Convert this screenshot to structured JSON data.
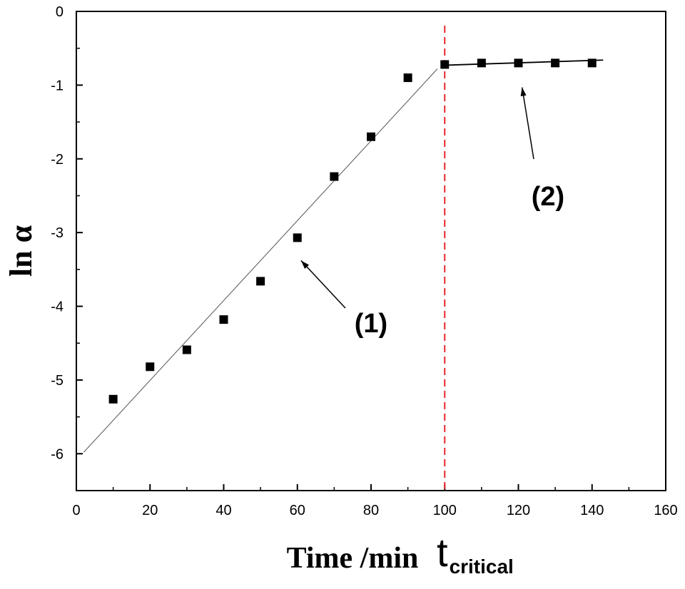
{
  "chart_data": {
    "type": "scatter",
    "xlabel": "Time /min",
    "ylabel": "ln α",
    "xlim": [
      0,
      160
    ],
    "ylim": [
      -6.5,
      0
    ],
    "x_ticks": [
      "0",
      "20",
      "40",
      "60",
      "80",
      "100",
      "120",
      "140",
      "160"
    ],
    "y_ticks": [
      "0",
      "-1",
      "-2",
      "-3",
      "-4",
      "-5",
      "-6"
    ],
    "series": [
      {
        "x": [
          10,
          20,
          30,
          40,
          50,
          60,
          70,
          80,
          90,
          100,
          110,
          120,
          130,
          140
        ],
        "y": [
          -5.26,
          -4.82,
          -4.59,
          -4.18,
          -3.66,
          -3.07,
          -2.24,
          -1.7,
          -0.9,
          -0.72,
          -0.7,
          -0.7,
          -0.7,
          -0.7
        ],
        "marker": "square",
        "color": "#000000"
      }
    ],
    "fit_lines": [
      {
        "name": "(1)",
        "x": [
          2,
          98
        ],
        "y": [
          -5.98,
          -0.78
        ]
      },
      {
        "name": "(2)",
        "x": [
          100,
          143
        ],
        "y": [
          -0.73,
          -0.66
        ]
      }
    ],
    "critical_line": {
      "x": 100,
      "color": "#e8262b",
      "style": "dashed",
      "label_main": "t",
      "label_sub": "critical"
    },
    "annotations": [
      {
        "text": "(1)",
        "arrow_to": [
          61,
          -3.38
        ]
      },
      {
        "text": "(2)",
        "arrow_to": [
          121,
          -1.03
        ]
      }
    ]
  }
}
